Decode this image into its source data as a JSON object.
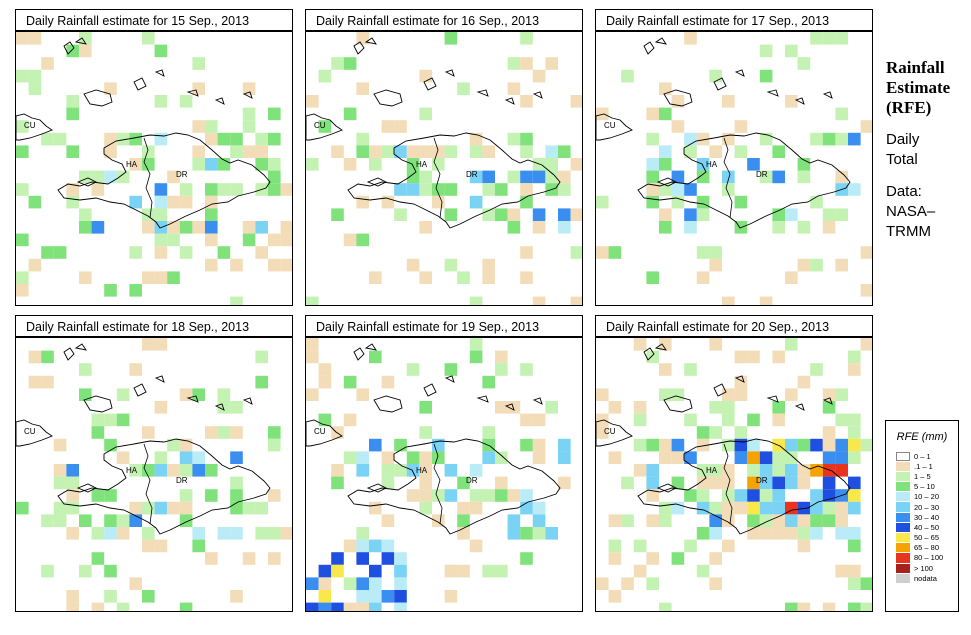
{
  "panels": [
    {
      "title": "Daily Rainfall estimate for  15 Sep., 2013"
    },
    {
      "title": "Daily Rainfall estimate for  16 Sep., 2013"
    },
    {
      "title": "Daily Rainfall estimate for  17 Sep., 2013"
    },
    {
      "title": "Daily Rainfall estimate for  18 Sep., 2013"
    },
    {
      "title": "Daily Rainfall estimate for  19 Sep., 2013"
    },
    {
      "title": "Daily Rainfall estimate for  20 Sep., 2013"
    }
  ],
  "map_labels": {
    "cuba": "CU",
    "haiti": "HA",
    "dominican_republic": "DR"
  },
  "side": {
    "title_line1": "Rainfall",
    "title_line2": "Estimate",
    "title_line3": "(RFE)",
    "daily_line1": "Daily",
    "daily_line2": "Total",
    "data_line1": "Data:",
    "data_line2": "NASA–",
    "data_line3": "TRMM"
  },
  "legend": {
    "title": "RFE (mm)",
    "items": [
      {
        "label": "0 – 1",
        "color": "#ffffff"
      },
      {
        "label": ".1 – 1",
        "color": "#f3dcb8"
      },
      {
        "label": "1 – 5",
        "color": "#c4f2b2"
      },
      {
        "label": "5 – 10",
        "color": "#7fe27a"
      },
      {
        "label": "10 – 20",
        "color": "#b9ecf6"
      },
      {
        "label": "20 – 30",
        "color": "#7ad2f4"
      },
      {
        "label": "30 – 40",
        "color": "#3a8ef0"
      },
      {
        "label": "40 – 50",
        "color": "#1f4fe0"
      },
      {
        "label": "50 – 65",
        "color": "#f9e84a"
      },
      {
        "label": "65 – 80",
        "color": "#f5a300"
      },
      {
        "label": "80 – 100",
        "color": "#e8341c"
      },
      {
        "label": "> 100",
        "color": "#a8201c"
      },
      {
        "label": "nodata",
        "color": "#cfcfcf"
      }
    ]
  }
}
